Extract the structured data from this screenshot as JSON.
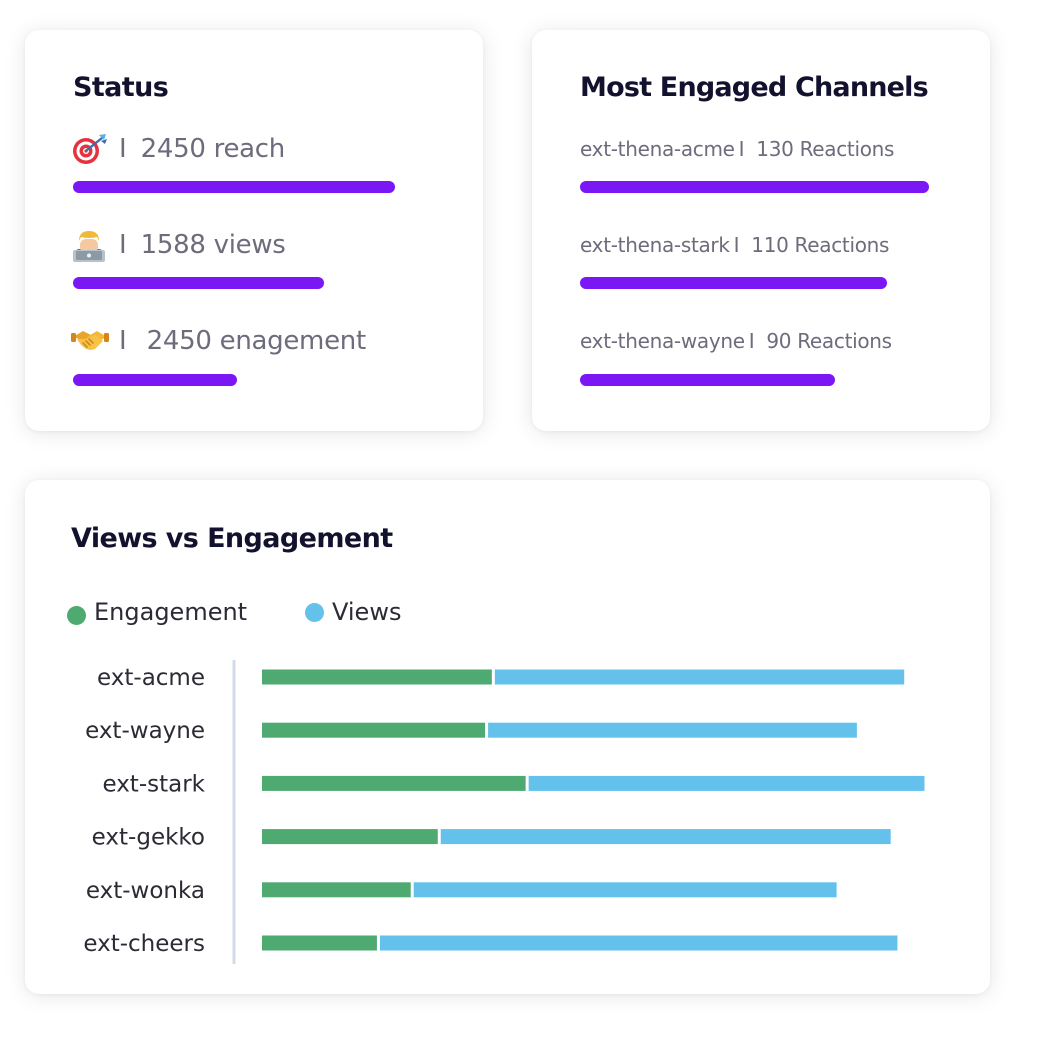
{
  "status_card": {
    "title": "Status",
    "separator": "I",
    "rows": [
      {
        "icon": "target-icon",
        "value": "2450",
        "unit": "reach",
        "level": 1.0
      },
      {
        "icon": "technologist-icon",
        "value": "1588",
        "unit": "views",
        "level": 0.78
      },
      {
        "icon": "handshake-icon",
        "value": "2450",
        "unit": "enagement",
        "level": 0.51
      }
    ]
  },
  "channels_card": {
    "title": "Most Engaged Channels",
    "separator": "I",
    "rows": [
      {
        "name": "ext-thena-acme",
        "count": "130",
        "unit": "Reactions",
        "level": 1.0
      },
      {
        "name": "ext-thena-stark",
        "count": "110",
        "unit": "Reactions",
        "level": 0.88
      },
      {
        "name": "ext-thena-wayne",
        "count": "90",
        "unit": "Reactions",
        "level": 0.73
      }
    ]
  },
  "colors": {
    "progress_bar": "#7b16f5",
    "engagement": "#4eaa71",
    "views": "#63c1ec",
    "axis_line": "#d3dbe9",
    "title": "#12122e"
  },
  "chart_data": {
    "type": "bar",
    "orientation": "horizontal",
    "stacked": true,
    "title": "Views vs Engagement",
    "xlabel": "",
    "ylabel": "",
    "legend_position": "top-left",
    "grid": false,
    "categories": [
      "ext-acme",
      "ext-wayne",
      "ext-stark",
      "ext-gekko",
      "ext-wonka",
      "ext-cheers"
    ],
    "series": [
      {
        "name": "Engagement",
        "color": "#4eaa71",
        "values": [
          34,
          33,
          39,
          26,
          22,
          17
        ]
      },
      {
        "name": "Views",
        "color": "#63c1ec",
        "values": [
          61,
          55,
          59,
          67,
          63,
          77
        ]
      }
    ],
    "xlim": [
      0,
      100
    ]
  }
}
